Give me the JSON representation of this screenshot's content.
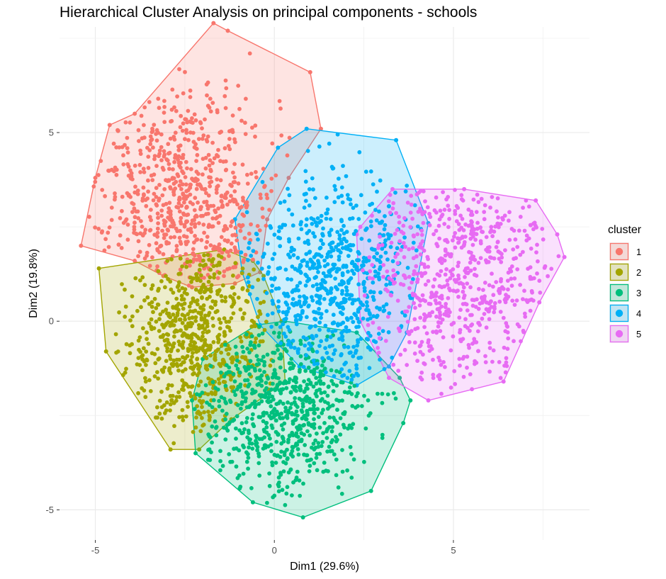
{
  "chart_data": {
    "type": "scatter",
    "title": "Hierarchical Cluster Analysis on principal components - schools",
    "xlabel": "Dim1 (29.6%)",
    "ylabel": "Dim2 (19.8%)",
    "xlim": [
      -6.0,
      8.8
    ],
    "ylim": [
      -5.8,
      7.8
    ],
    "x_ticks": [
      -5,
      0,
      5
    ],
    "y_ticks": [
      -5,
      0,
      5
    ],
    "x_tick_labels": [
      "-5",
      "0",
      "5"
    ],
    "y_tick_labels": [
      "-5",
      "0",
      "5"
    ],
    "grid": true,
    "legend": {
      "title": "cluster",
      "position": "right"
    },
    "series": [
      {
        "name": "1",
        "color": "#F8766D",
        "point_count": 700,
        "center": [
          -2.5,
          3.3
        ],
        "spread": [
          1.3,
          1.5
        ],
        "hull": [
          [
            -5.4,
            2.0
          ],
          [
            -5.0,
            3.8
          ],
          [
            -4.6,
            5.2
          ],
          [
            -3.9,
            5.5
          ],
          [
            -1.7,
            7.9
          ],
          [
            -1.3,
            7.7
          ],
          [
            1.0,
            6.6
          ],
          [
            1.3,
            5.1
          ],
          [
            0.4,
            3.8
          ],
          [
            -0.2,
            2.7
          ],
          [
            -0.4,
            1.3
          ],
          [
            -1.1,
            1.0
          ],
          [
            -2.3,
            0.9
          ],
          [
            -3.1,
            1.2
          ],
          [
            -3.9,
            1.6
          ]
        ]
      },
      {
        "name": "2",
        "color": "#A3A500",
        "point_count": 650,
        "center": [
          -2.2,
          -0.5
        ],
        "spread": [
          1.0,
          1.3
        ],
        "hull": [
          [
            -4.9,
            1.4
          ],
          [
            -1.4,
            1.9
          ],
          [
            -0.6,
            1.6
          ],
          [
            -0.3,
            1.2
          ],
          [
            0.2,
            0.0
          ],
          [
            0.3,
            -1.6
          ],
          [
            -1.2,
            -2.6
          ],
          [
            -2.1,
            -3.4
          ],
          [
            -2.9,
            -3.4
          ],
          [
            -4.7,
            -0.8
          ]
        ]
      },
      {
        "name": "3",
        "color": "#00BF7D",
        "point_count": 700,
        "center": [
          0.2,
          -2.4
        ],
        "spread": [
          1.2,
          1.1
        ],
        "hull": [
          [
            -2.0,
            -1.0
          ],
          [
            -0.5,
            -0.1
          ],
          [
            0.3,
            0.0
          ],
          [
            2.3,
            -0.3
          ],
          [
            3.5,
            -1.5
          ],
          [
            3.8,
            -2.1
          ],
          [
            3.6,
            -2.7
          ],
          [
            2.7,
            -4.5
          ],
          [
            0.8,
            -5.2
          ],
          [
            -0.6,
            -4.8
          ],
          [
            -2.2,
            -3.5
          ],
          [
            -2.3,
            -2.1
          ]
        ]
      },
      {
        "name": "4",
        "color": "#00B0F6",
        "point_count": 700,
        "center": [
          1.6,
          1.1
        ],
        "spread": [
          1.1,
          1.4
        ],
        "hull": [
          [
            -1.1,
            2.7
          ],
          [
            0.1,
            4.6
          ],
          [
            0.9,
            5.1
          ],
          [
            3.4,
            4.8
          ],
          [
            4.3,
            2.6
          ],
          [
            3.7,
            -0.3
          ],
          [
            3.2,
            -1.2
          ],
          [
            2.3,
            -1.7
          ],
          [
            0.7,
            -1.2
          ],
          [
            -0.4,
            -0.1
          ],
          [
            -0.9,
            1.3
          ]
        ]
      },
      {
        "name": "5",
        "color": "#E76BF3",
        "point_count": 650,
        "center": [
          5.3,
          1.3
        ],
        "spread": [
          1.4,
          1.5
        ],
        "hull": [
          [
            2.4,
            2.5
          ],
          [
            3.3,
            3.5
          ],
          [
            5.3,
            3.5
          ],
          [
            7.3,
            3.2
          ],
          [
            7.9,
            2.3
          ],
          [
            8.1,
            1.7
          ],
          [
            7.4,
            0.5
          ],
          [
            6.4,
            -1.6
          ],
          [
            4.3,
            -2.1
          ],
          [
            3.2,
            -1.5
          ],
          [
            2.4,
            0.0
          ],
          [
            2.3,
            2.3
          ]
        ]
      }
    ]
  }
}
